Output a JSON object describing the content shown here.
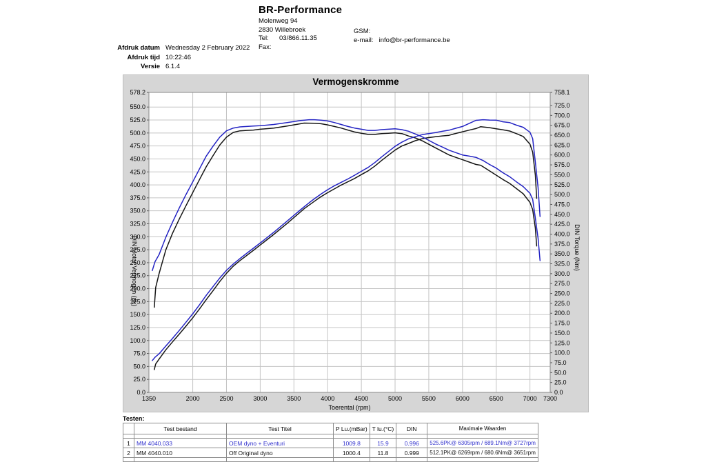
{
  "header": {
    "company": "BR-Performance",
    "address_line1": "Molenweg 94",
    "address_line2": "2830 Willebroek",
    "tel_label": "Tel:",
    "tel_value": "03/866.11.35",
    "fax_label": "Fax:",
    "gsm_label": "GSM:",
    "email_label": "e-mail:",
    "email_value": "info@br-performance.be"
  },
  "print_info": {
    "rows": [
      {
        "label": "Afdruk datum",
        "value": "Wednesday 2 February 2022"
      },
      {
        "label": "Afdruk tijd",
        "value": "10:22:46"
      },
      {
        "label": "Versie",
        "value": "6.1.4"
      }
    ]
  },
  "colors": {
    "curve_blue": "#2323c3",
    "curve_black": "#141414",
    "figure_bg": "#d6d6d6",
    "grid": "#c4c4c4",
    "table_text_blue": "#3232cd"
  },
  "chart_data": {
    "type": "line",
    "title": "Vermogenskromme",
    "xlabel": "Toerental (rpm)",
    "ylabel_left": "DIN Motor Vermogen (pk)",
    "ylabel_right": "DIN Torque (Nm)",
    "grid": true,
    "xlim": [
      1350,
      7300
    ],
    "x_ticks": [
      1350,
      2000,
      2500,
      3000,
      3500,
      4000,
      4500,
      5000,
      5500,
      6000,
      6500,
      7000,
      7300
    ],
    "left_axis": {
      "label": "DIN Motor Vermogen (pk)",
      "max": 578.2,
      "ticks": [
        578.2,
        550,
        525,
        500,
        475,
        450,
        425,
        400,
        375,
        350,
        325,
        300,
        275,
        250,
        225,
        200,
        175,
        150,
        125,
        100,
        75,
        50,
        25,
        0
      ]
    },
    "right_axis": {
      "label": "DIN Torque (Nm)",
      "max": 758.1,
      "ticks": [
        758.1,
        725,
        700,
        675,
        650,
        625,
        600,
        575,
        550,
        525,
        500,
        475,
        450,
        425,
        400,
        375,
        350,
        325,
        300,
        275,
        250,
        225,
        200,
        175,
        150,
        125,
        100,
        75,
        50,
        25,
        0
      ]
    },
    "series": [
      {
        "name": "Off Original dyno - power (pk)",
        "run": "MM 4040.010",
        "axis": "left",
        "color": "#141414",
        "points": [
          [
            1430,
            43.8
          ],
          [
            1450,
            54.7
          ],
          [
            1500,
            64.1
          ],
          [
            1600,
            82.0
          ],
          [
            1700,
            97.3
          ],
          [
            1800,
            112.3
          ],
          [
            1900,
            127.7
          ],
          [
            2000,
            143.8
          ],
          [
            2100,
            160.9
          ],
          [
            2200,
            178.6
          ],
          [
            2300,
            195.8
          ],
          [
            2400,
            213.6
          ],
          [
            2500,
            229.6
          ],
          [
            2600,
            243.2
          ],
          [
            2700,
            254.1
          ],
          [
            2800,
            263.9
          ],
          [
            2900,
            273.8
          ],
          [
            3000,
            284.1
          ],
          [
            3200,
            304.4
          ],
          [
            3400,
            325.8
          ],
          [
            3600,
            348.1
          ],
          [
            3651,
            354.0
          ],
          [
            3800,
            367.9
          ],
          [
            3900,
            377.1
          ],
          [
            4000,
            385.0
          ],
          [
            4100,
            392.3
          ],
          [
            4200,
            399.5
          ],
          [
            4300,
            405.9
          ],
          [
            4400,
            412.3
          ],
          [
            4500,
            419.7
          ],
          [
            4600,
            427.0
          ],
          [
            4700,
            436.3
          ],
          [
            4800,
            447.0
          ],
          [
            4900,
            457.0
          ],
          [
            5000,
            467.0
          ],
          [
            5100,
            474.9
          ],
          [
            5200,
            479.8
          ],
          [
            5300,
            485.2
          ],
          [
            5400,
            489.0
          ],
          [
            5500,
            491.1
          ],
          [
            5600,
            492.8
          ],
          [
            5700,
            494.3
          ],
          [
            5800,
            495.5
          ],
          [
            5900,
            499.1
          ],
          [
            6000,
            502.3
          ],
          [
            6100,
            505.5
          ],
          [
            6200,
            508.5
          ],
          [
            6269,
            512.1
          ],
          [
            6400,
            510.3
          ],
          [
            6500,
            508.0
          ],
          [
            6600,
            506.0
          ],
          [
            6700,
            503.7
          ],
          [
            6800,
            498.7
          ],
          [
            6900,
            493.2
          ],
          [
            7000,
            478.4
          ],
          [
            7040,
            463.1
          ],
          [
            7080,
            418.4
          ],
          [
            7100,
            374.1
          ]
        ]
      },
      {
        "name": "Off Original dyno - torque (Nm)",
        "run": "MM 4040.010",
        "axis": "right",
        "color": "#141414",
        "points": [
          [
            1430,
            215
          ],
          [
            1450,
            265
          ],
          [
            1500,
            300
          ],
          [
            1600,
            360
          ],
          [
            1700,
            402
          ],
          [
            1800,
            438
          ],
          [
            1900,
            472
          ],
          [
            2000,
            505
          ],
          [
            2100,
            538
          ],
          [
            2200,
            570
          ],
          [
            2300,
            598
          ],
          [
            2400,
            625
          ],
          [
            2500,
            645
          ],
          [
            2600,
            657
          ],
          [
            2700,
            661
          ],
          [
            2800,
            662
          ],
          [
            2900,
            663
          ],
          [
            3000,
            665
          ],
          [
            3200,
            668
          ],
          [
            3400,
            673
          ],
          [
            3600,
            679
          ],
          [
            3651,
            680.6
          ],
          [
            3800,
            680
          ],
          [
            3900,
            679
          ],
          [
            4000,
            676
          ],
          [
            4100,
            672
          ],
          [
            4200,
            668
          ],
          [
            4300,
            663
          ],
          [
            4400,
            658
          ],
          [
            4500,
            655
          ],
          [
            4600,
            652
          ],
          [
            4700,
            652
          ],
          [
            4800,
            654
          ],
          [
            4900,
            655
          ],
          [
            5000,
            656
          ],
          [
            5100,
            654
          ],
          [
            5200,
            648
          ],
          [
            5300,
            643
          ],
          [
            5400,
            636
          ],
          [
            5500,
            627
          ],
          [
            5600,
            618
          ],
          [
            5700,
            609
          ],
          [
            5800,
            600
          ],
          [
            5900,
            594
          ],
          [
            6000,
            588
          ],
          [
            6100,
            582
          ],
          [
            6200,
            576
          ],
          [
            6269,
            574
          ],
          [
            6400,
            560
          ],
          [
            6500,
            549
          ],
          [
            6600,
            538
          ],
          [
            6700,
            528
          ],
          [
            6800,
            515
          ],
          [
            6900,
            502
          ],
          [
            7000,
            480
          ],
          [
            7040,
            462
          ],
          [
            7080,
            415
          ],
          [
            7100,
            370
          ]
        ]
      },
      {
        "name": "OEM dyno + Eventuri - power (pk)",
        "run": "MM 4040.033",
        "axis": "left",
        "color": "#2323c3",
        "points": [
          [
            1400,
            61.4
          ],
          [
            1440,
            67.7
          ],
          [
            1500,
            74.3
          ],
          [
            1600,
            89.3
          ],
          [
            1700,
            104.1
          ],
          [
            1800,
            119.4
          ],
          [
            1900,
            135.3
          ],
          [
            2000,
            151.5
          ],
          [
            2100,
            168.9
          ],
          [
            2200,
            187.0
          ],
          [
            2300,
            203.7
          ],
          [
            2400,
            220.4
          ],
          [
            2500,
            235.3
          ],
          [
            2600,
            247.3
          ],
          [
            2700,
            258.0
          ],
          [
            2800,
            267.9
          ],
          [
            2900,
            277.9
          ],
          [
            3000,
            287.9
          ],
          [
            3200,
            308.5
          ],
          [
            3400,
            330.2
          ],
          [
            3600,
            352.2
          ],
          [
            3727,
            365.6
          ],
          [
            3800,
            372.8
          ],
          [
            3900,
            382.1
          ],
          [
            4000,
            390.7
          ],
          [
            4100,
            398.2
          ],
          [
            4200,
            404.9
          ],
          [
            4300,
            411.4
          ],
          [
            4400,
            418.5
          ],
          [
            4500,
            426.1
          ],
          [
            4600,
            433.6
          ],
          [
            4700,
            443.0
          ],
          [
            4800,
            453.8
          ],
          [
            4900,
            464.0
          ],
          [
            5000,
            474.2
          ],
          [
            5100,
            482.2
          ],
          [
            5200,
            488.7
          ],
          [
            5300,
            492.8
          ],
          [
            5400,
            496.7
          ],
          [
            5500,
            498.9
          ],
          [
            5600,
            500.8
          ],
          [
            5700,
            503.2
          ],
          [
            5800,
            505.4
          ],
          [
            5900,
            509.1
          ],
          [
            6000,
            512.6
          ],
          [
            6100,
            518.5
          ],
          [
            6200,
            524.4
          ],
          [
            6305,
            525.6
          ],
          [
            6400,
            524.9
          ],
          [
            6500,
            524.7
          ],
          [
            6600,
            521.6
          ],
          [
            6700,
            520.0
          ],
          [
            6800,
            515.1
          ],
          [
            6900,
            510.9
          ],
          [
            7000,
            501.4
          ],
          [
            7040,
            489.2
          ],
          [
            7080,
            443.6
          ],
          [
            7120,
            395.4
          ],
          [
            7150,
            339.0
          ]
        ]
      },
      {
        "name": "OEM dyno + Eventuri - torque (Nm)",
        "run": "MM 4040.033",
        "axis": "right",
        "color": "#2323c3",
        "points": [
          [
            1400,
            308
          ],
          [
            1440,
            330
          ],
          [
            1500,
            348
          ],
          [
            1600,
            392
          ],
          [
            1700,
            430
          ],
          [
            1800,
            466
          ],
          [
            1900,
            500
          ],
          [
            2000,
            532
          ],
          [
            2100,
            565
          ],
          [
            2200,
            597
          ],
          [
            2300,
            622
          ],
          [
            2400,
            645
          ],
          [
            2500,
            661
          ],
          [
            2600,
            668
          ],
          [
            2700,
            671
          ],
          [
            2800,
            672
          ],
          [
            2900,
            673
          ],
          [
            3000,
            674
          ],
          [
            3200,
            677
          ],
          [
            3400,
            682
          ],
          [
            3600,
            687
          ],
          [
            3727,
            689.1
          ],
          [
            3800,
            689
          ],
          [
            3900,
            688
          ],
          [
            4000,
            686
          ],
          [
            4100,
            682
          ],
          [
            4200,
            677
          ],
          [
            4300,
            672
          ],
          [
            4400,
            668
          ],
          [
            4500,
            665
          ],
          [
            4600,
            662
          ],
          [
            4700,
            662
          ],
          [
            4800,
            664
          ],
          [
            4900,
            665
          ],
          [
            5000,
            666
          ],
          [
            5100,
            664
          ],
          [
            5200,
            660
          ],
          [
            5300,
            653
          ],
          [
            5400,
            646
          ],
          [
            5500,
            637
          ],
          [
            5600,
            628
          ],
          [
            5700,
            620
          ],
          [
            5800,
            612
          ],
          [
            5900,
            606
          ],
          [
            6000,
            600
          ],
          [
            6100,
            597
          ],
          [
            6200,
            594
          ],
          [
            6305,
            586
          ],
          [
            6400,
            576
          ],
          [
            6500,
            567
          ],
          [
            6600,
            555
          ],
          [
            6700,
            545
          ],
          [
            6800,
            532
          ],
          [
            6900,
            520
          ],
          [
            7000,
            503
          ],
          [
            7040,
            488
          ],
          [
            7080,
            440
          ],
          [
            7120,
            390
          ],
          [
            7150,
            333
          ]
        ]
      }
    ]
  },
  "table": {
    "section_label": "Testen:",
    "columns": [
      "",
      "Test bestand",
      "Test Titel",
      "P Lu.(mBar)",
      "T lu.(°C)",
      "DIN",
      "Maximale Waarden"
    ],
    "rows": [
      {
        "num": "1",
        "file": "MM 4040.033",
        "title": "OEM dyno + Eventuri",
        "p_lu": "1009.8",
        "t_lu": "15.9",
        "din": "0.996",
        "max": "525.6PK@ 6305rpm / 689.1Nm@ 3727rpm"
      },
      {
        "num": "2",
        "file": "MM 4040.010",
        "title": "Off Original dyno",
        "p_lu": "1000.4",
        "t_lu": "11.8",
        "din": "0.999",
        "max": "512.1PK@ 6269rpm / 680.6Nm@ 3651rpm"
      }
    ]
  }
}
